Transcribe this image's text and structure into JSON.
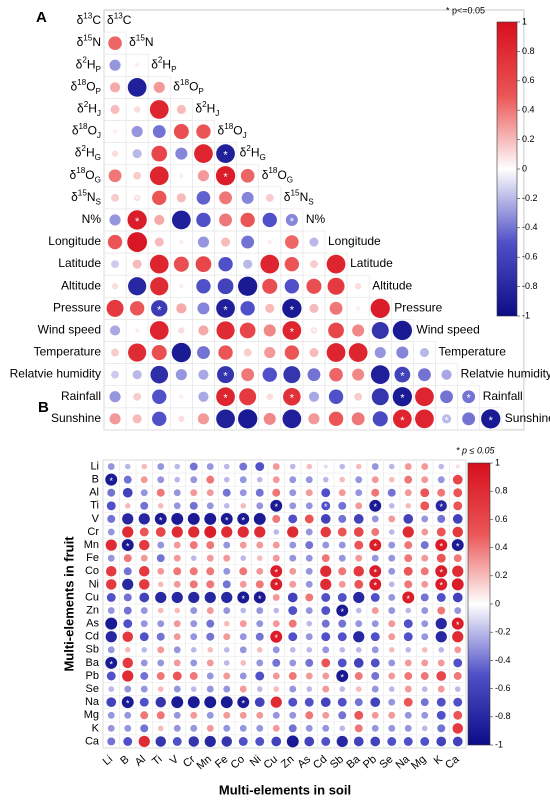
{
  "chart_data": [
    {
      "type": "heatmap",
      "panel_label": "A",
      "significance_note": "* p<=0.05",
      "labels_rich": [
        [
          "δ",
          [
            "13",
            "sup"
          ],
          "C"
        ],
        [
          "δ",
          [
            "15",
            "sup"
          ],
          "N"
        ],
        [
          "δ",
          [
            "2",
            "sup"
          ],
          "H",
          [
            "P",
            "sub"
          ]
        ],
        [
          "δ",
          [
            "18",
            "sup"
          ],
          "O",
          [
            "P",
            "sub"
          ]
        ],
        [
          "δ",
          [
            "2",
            "sup"
          ],
          "H",
          [
            "J",
            "sub"
          ]
        ],
        [
          "δ",
          [
            "18",
            "sup"
          ],
          "O",
          [
            "J",
            "sub"
          ]
        ],
        [
          "δ",
          [
            "2",
            "sup"
          ],
          "H",
          [
            "G",
            "sub"
          ]
        ],
        [
          "δ",
          [
            "18",
            "sup"
          ],
          "O",
          [
            "G",
            "sub"
          ]
        ],
        [
          "δ",
          [
            "15",
            "sup"
          ],
          "N",
          [
            "S",
            "sub"
          ]
        ],
        [
          "N%"
        ],
        [
          "Longitude"
        ],
        [
          "Latitude"
        ],
        [
          "Altitude"
        ],
        [
          "Pressure"
        ],
        [
          "Wind speed"
        ],
        [
          "Temperature"
        ],
        [
          "Relatvie humidity"
        ],
        [
          "Rainfall"
        ],
        [
          "Sunshine"
        ]
      ],
      "colorbar_ticks": [
        "1",
        "0.8",
        "0.6",
        "0.4",
        "0.2",
        "0",
        "-0.2",
        "-0.4",
        "-0.6",
        "-0.8",
        "-1"
      ],
      "lower_triangle_values": [
        [],
        [
          0.45
        ],
        [
          -0.3,
          0.05
        ],
        [
          0.25,
          -0.85,
          0.3
        ],
        [
          0.2,
          0.1,
          0.85,
          0.2
        ],
        [
          0.05,
          -0.3,
          -0.4,
          0.55,
          0.5
        ],
        [
          0.1,
          -0.2,
          0.6,
          -0.35,
          0.85,
          -0.85
        ],
        [
          0.4,
          0.15,
          0.85,
          0.05,
          0.3,
          0.9,
          0.45
        ],
        [
          0.15,
          0.1,
          0.5,
          0.2,
          -0.45,
          0.4,
          -0.35,
          0.15
        ],
        [
          -0.3,
          0.9,
          0.25,
          -0.85,
          -0.5,
          0.4,
          0.5,
          -0.5,
          -0.35
        ],
        [
          0.5,
          0.95,
          0.2,
          0.05,
          -0.3,
          0.2,
          -0.4,
          0.05,
          0.45,
          -0.2
        ],
        [
          -0.15,
          0.2,
          0.85,
          0.55,
          0.6,
          -0.5,
          -0.2,
          0.85,
          0.5,
          0.15,
          0.85
        ],
        [
          0.1,
          -0.8,
          0.8,
          0.05,
          -0.5,
          -0.6,
          -0.9,
          0.55,
          -0.5,
          0.55,
          0.7,
          0.1
        ],
        [
          0.7,
          0.5,
          -0.65,
          0.25,
          -0.35,
          -0.85,
          -0.5,
          0.2,
          -0.9,
          0.2,
          0.4,
          0.05,
          0.9
        ],
        [
          -0.25,
          0.05,
          0.85,
          0.1,
          0.25,
          0.8,
          0.6,
          0.35,
          0.85,
          0.1,
          0.6,
          0.35,
          -0.7,
          -0.9
        ],
        [
          0.15,
          0.8,
          0.55,
          -0.9,
          -0.4,
          0.5,
          0.15,
          0.3,
          0.5,
          0.2,
          0.85,
          0.85,
          -0.3,
          -0.35,
          -0.2
        ],
        [
          -0.15,
          -0.2,
          -0.75,
          -0.3,
          -0.25,
          -0.7,
          0.4,
          -0.5,
          -0.7,
          -0.4,
          0.45,
          0.35,
          -0.85,
          -0.6,
          -0.4,
          -0.25
        ],
        [
          -0.3,
          0.15,
          -0.5,
          0.05,
          -0.25,
          0.85,
          0.7,
          0.1,
          0.75,
          -0.25,
          -0.5,
          0.15,
          -0.7,
          -0.9,
          0.85,
          -0.4,
          -0.4
        ],
        [
          0.3,
          0.2,
          -0.5,
          0.1,
          0.3,
          -0.85,
          -0.9,
          0.35,
          -0.85,
          0.3,
          0.5,
          0.4,
          -0.55,
          0.85,
          0.85,
          -0.2,
          -0.4,
          -0.9
        ],
        [
          -0.45,
          0.2,
          -0.3,
          0.3,
          0.3,
          0.95,
          0.4,
          0.25,
          0.9,
          0.2,
          -0.3,
          0.25,
          -0.6,
          -0.9,
          -0.9,
          0.4,
          0.4,
          0.85,
          -0.9
        ]
      ],
      "significant_cells": [
        [
          6,
          5
        ],
        [
          7,
          5
        ],
        [
          8,
          1
        ],
        [
          9,
          1
        ],
        [
          9,
          8
        ],
        [
          13,
          2
        ],
        [
          13,
          5
        ],
        [
          13,
          8
        ],
        [
          14,
          8
        ],
        [
          14,
          9
        ],
        [
          16,
          5
        ],
        [
          16,
          13
        ],
        [
          17,
          5
        ],
        [
          17,
          8
        ],
        [
          17,
          13
        ],
        [
          17,
          16
        ],
        [
          18,
          13
        ],
        [
          18,
          15
        ],
        [
          18,
          17
        ]
      ]
    },
    {
      "type": "heatmap",
      "panel_label": "B",
      "significance_note": "* p ≤ 0.05",
      "xlabel": "Multi-elements in soil",
      "ylabel": "Multi-elements in fruit",
      "x_labels": [
        "Li",
        "B",
        "Al",
        "Ti",
        "V",
        "Cr",
        "Mn",
        "Fe",
        "Co",
        "Ni",
        "Cu",
        "Zn",
        "As",
        "Cd",
        "Sb",
        "Ba",
        "Pb",
        "Se",
        "Na",
        "Mg",
        "K",
        "Ca"
      ],
      "y_labels": [
        "Li",
        "B",
        "Al",
        "Ti",
        "V",
        "Cr",
        "Mn",
        "Fe",
        "Co",
        "Ni",
        "Cu",
        "Zn",
        "As",
        "Cd",
        "Sb",
        "Ba",
        "Pb",
        "Se",
        "Na",
        "Mg",
        "K",
        "Ca"
      ],
      "colorbar_ticks": [
        "1",
        "0.8",
        "0.6",
        "0.4",
        "0.2",
        "0",
        "-0.2",
        "-0.4",
        "-0.6",
        "-0.8",
        "-1"
      ],
      "values": [
        [
          -0.3,
          -0.2,
          0.2,
          -0.3,
          -0.2,
          -0.4,
          -0.3,
          -0.2,
          -0.4,
          -0.5,
          0.3,
          -0.2,
          0.2,
          -0.1,
          -0.2,
          0.2,
          -0.3,
          -0.2,
          0.3,
          0.3,
          -0.2,
          0.1
        ],
        [
          -0.9,
          -0.4,
          0.3,
          -0.3,
          -0.2,
          -0.3,
          0.4,
          -0.2,
          -0.3,
          -0.2,
          0.3,
          -0.3,
          -0.3,
          -0.2,
          0.2,
          -0.3,
          0.3,
          0.2,
          0.4,
          0.3,
          -0.3,
          0.6
        ],
        [
          -0.4,
          -0.6,
          -0.3,
          0.4,
          -0.3,
          0.3,
          0.3,
          -0.4,
          -0.3,
          -0.4,
          0.4,
          -0.3,
          0.3,
          -0.5,
          0.3,
          -0.3,
          0.4,
          -0.4,
          0.3,
          0.5,
          0.4,
          0.5
        ],
        [
          -0.5,
          0.2,
          -0.4,
          0.2,
          -0.3,
          -0.4,
          -0.3,
          -0.2,
          0.2,
          -0.3,
          -0.9,
          -0.3,
          -0.3,
          -0.5,
          -0.4,
          0.3,
          -0.9,
          -0.2,
          0.2,
          0.5,
          -0.8,
          0.5
        ],
        [
          -0.4,
          -0.8,
          -0.8,
          -0.9,
          -0.9,
          -0.9,
          -0.9,
          -0.9,
          -0.9,
          -0.9,
          0.4,
          -0.5,
          0.5,
          -0.6,
          -0.4,
          -0.6,
          -0.3,
          0.3,
          -0.6,
          -0.3,
          -0.4,
          -0.6
        ],
        [
          -0.3,
          0.8,
          0.5,
          0.6,
          0.8,
          0.8,
          0.9,
          0.8,
          0.8,
          0.8,
          -0.2,
          0.8,
          -0.3,
          0.7,
          0.5,
          0.6,
          0.4,
          -0.2,
          0.8,
          0.3,
          0.5,
          0.7
        ],
        [
          0.8,
          -0.9,
          0.7,
          -0.3,
          0.3,
          0.4,
          0.4,
          -0.3,
          0.3,
          0.3,
          0.3,
          -0.3,
          -0.4,
          -0.3,
          -0.3,
          0.5,
          0.9,
          -0.3,
          0.4,
          -0.4,
          0.9,
          -0.9
        ],
        [
          -0.3,
          0.4,
          0.3,
          -0.4,
          0.3,
          -0.2,
          0.3,
          0.3,
          -0.2,
          0.2,
          0.3,
          -0.3,
          -0.3,
          0.4,
          -0.3,
          0.3,
          -0.3,
          -0.3,
          0.4,
          0.3,
          0.5,
          0.4
        ],
        [
          0.7,
          -0.4,
          0.7,
          0.3,
          0.4,
          0.4,
          0.4,
          -0.3,
          0.4,
          0.3,
          0.9,
          0.3,
          -0.3,
          0.8,
          0.4,
          0.7,
          0.9,
          -0.3,
          0.5,
          0.4,
          0.9,
          0.8
        ],
        [
          0.7,
          -0.8,
          0.7,
          0.2,
          0.3,
          0.4,
          0.4,
          -0.4,
          0.3,
          0.4,
          0.9,
          0.3,
          -0.3,
          0.8,
          0.3,
          0.5,
          0.9,
          -0.2,
          0.4,
          0.3,
          0.9,
          0.9
        ],
        [
          -0.5,
          -0.4,
          -0.6,
          -0.8,
          -0.8,
          -0.8,
          -0.8,
          -0.8,
          -0.9,
          -0.9,
          0.3,
          -0.6,
          0.4,
          -0.5,
          -0.5,
          -0.8,
          -0.5,
          -0.3,
          0.9,
          -0.4,
          -0.5,
          -0.6
        ],
        [
          -0.3,
          -0.4,
          -0.3,
          0.2,
          0.2,
          -0.3,
          0.3,
          -0.3,
          -0.2,
          -0.3,
          -0.2,
          -0.5,
          -0.3,
          -0.5,
          -0.9,
          -0.2,
          0.3,
          -0.3,
          -0.2,
          -0.3,
          0.4,
          -0.3
        ],
        [
          -0.9,
          -0.5,
          -0.3,
          -0.3,
          0.3,
          -0.3,
          -0.4,
          0.2,
          0.3,
          -0.3,
          0.3,
          0.4,
          -0.2,
          -0.4,
          -0.4,
          -0.3,
          -0.3,
          0.3,
          -0.5,
          -0.3,
          -0.8,
          0.9
        ],
        [
          -0.8,
          0.7,
          -0.5,
          -0.4,
          0.3,
          -0.3,
          -0.4,
          0.3,
          -0.3,
          -0.4,
          0.9,
          -0.5,
          -0.3,
          -0.5,
          -0.5,
          -0.8,
          -0.5,
          0.3,
          -0.5,
          -0.3,
          -0.8,
          0.8
        ],
        [
          -0.3,
          0.2,
          -0.2,
          0.3,
          -0.3,
          -0.2,
          0.2,
          -0.2,
          -0.3,
          0.2,
          -0.3,
          -0.2,
          -0.2,
          -0.3,
          -0.2,
          -0.2,
          -0.3,
          0.2,
          -0.2,
          0.2,
          -0.2,
          0.3
        ],
        [
          -0.9,
          0.7,
          -0.3,
          -0.3,
          0.3,
          -0.3,
          0.3,
          -0.2,
          0.2,
          -0.3,
          -0.4,
          -0.3,
          -0.4,
          0.5,
          -0.5,
          -0.6,
          -0.5,
          -0.3,
          0.3,
          0.3,
          0.3,
          -0.5
        ],
        [
          -0.5,
          0.8,
          -0.4,
          0.4,
          0.5,
          0.4,
          -0.3,
          0.3,
          -0.3,
          -0.5,
          0.3,
          0.4,
          0.3,
          0.3,
          -0.9,
          0.4,
          -0.4,
          0.3,
          0.4,
          0.4,
          0.6,
          0.4
        ],
        [
          -0.2,
          -0.3,
          -0.3,
          0.2,
          -0.3,
          -0.2,
          -0.3,
          -0.3,
          0.3,
          -0.2,
          0.2,
          -0.3,
          -0.2,
          0.3,
          -0.2,
          0.2,
          -0.3,
          -0.2,
          0.3,
          -0.2,
          0.3,
          -0.2
        ],
        [
          -0.6,
          -0.9,
          -0.5,
          -0.7,
          -0.9,
          -0.9,
          -0.9,
          -0.9,
          -0.9,
          -0.6,
          0.8,
          -0.5,
          -0.5,
          -0.6,
          -0.5,
          -0.4,
          -0.6,
          -0.3,
          0.5,
          -0.4,
          -0.5,
          -0.5
        ],
        [
          -0.3,
          -0.3,
          0.4,
          0.4,
          -0.3,
          0.3,
          -0.3,
          0.3,
          0.3,
          0.3,
          -0.3,
          -0.3,
          0.4,
          0.3,
          -0.4,
          0.5,
          0.3,
          0.3,
          -0.3,
          -0.3,
          -0.5,
          0.5
        ],
        [
          -0.3,
          -0.3,
          -0.4,
          0.2,
          -0.3,
          -0.3,
          0.3,
          -0.3,
          -0.3,
          -0.3,
          0.3,
          -0.4,
          -0.3,
          -0.3,
          -0.2,
          0.4,
          -0.3,
          -0.3,
          -0.3,
          -0.2,
          -0.4,
          0.7
        ],
        [
          -0.4,
          -0.5,
          0.8,
          -0.7,
          -0.5,
          -0.7,
          -0.8,
          -0.7,
          -0.5,
          -0.5,
          -0.6,
          -0.9,
          -0.6,
          -0.5,
          -0.8,
          -0.6,
          -0.6,
          -0.5,
          -0.5,
          -0.5,
          -0.6,
          -0.6
        ]
      ],
      "significant_cells": [
        [
          1,
          0
        ],
        [
          3,
          10
        ],
        [
          3,
          13
        ],
        [
          3,
          16
        ],
        [
          3,
          20
        ],
        [
          4,
          3
        ],
        [
          4,
          7
        ],
        [
          4,
          8
        ],
        [
          6,
          1
        ],
        [
          6,
          16
        ],
        [
          6,
          20
        ],
        [
          6,
          21
        ],
        [
          8,
          10
        ],
        [
          8,
          16
        ],
        [
          8,
          20
        ],
        [
          9,
          10
        ],
        [
          9,
          16
        ],
        [
          9,
          20
        ],
        [
          10,
          8
        ],
        [
          10,
          9
        ],
        [
          10,
          18
        ],
        [
          11,
          14
        ],
        [
          12,
          21
        ],
        [
          13,
          10
        ],
        [
          15,
          0
        ],
        [
          16,
          14
        ],
        [
          18,
          1
        ],
        [
          18,
          8
        ]
      ]
    }
  ]
}
